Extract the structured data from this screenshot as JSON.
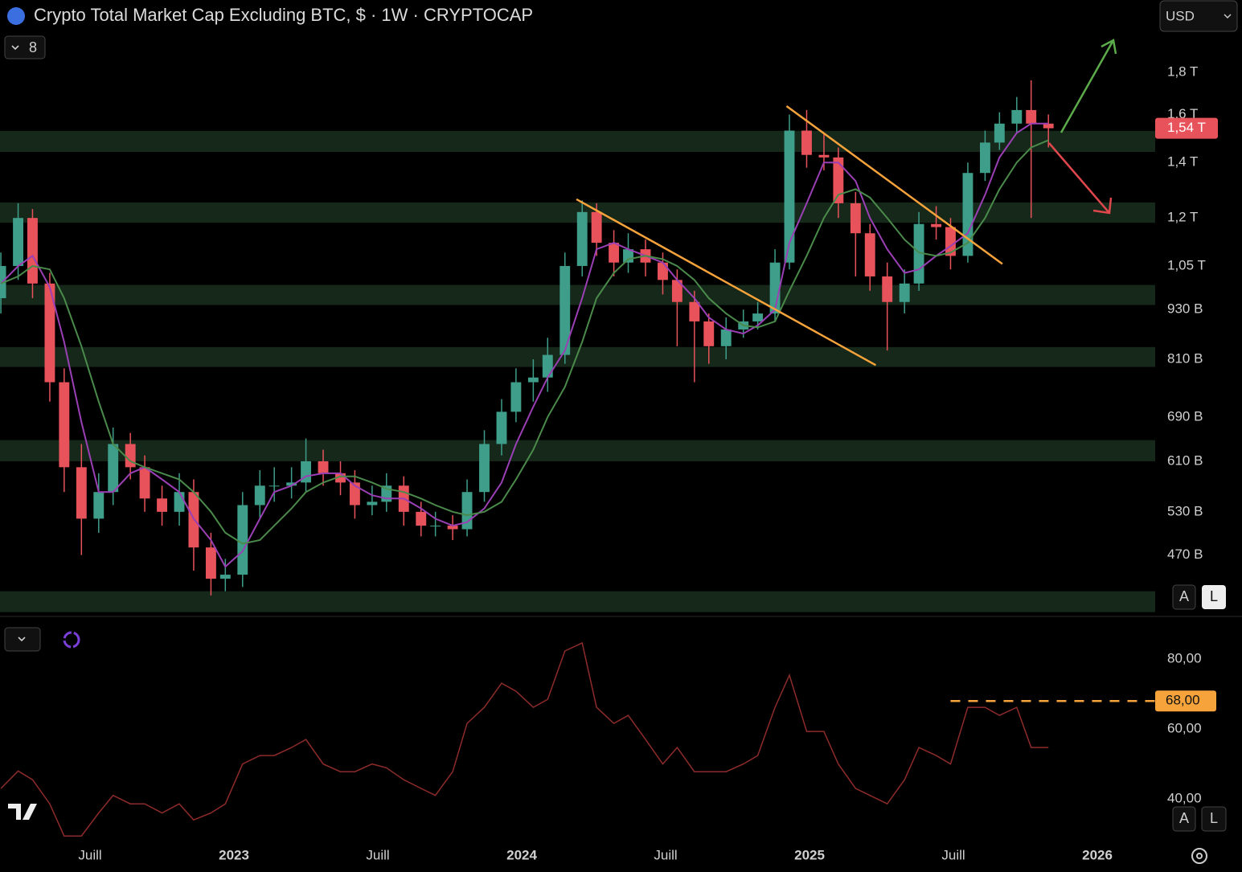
{
  "header": {
    "title": "Crypto Total Market Cap Excluding BTC, $ · 1W · CRYPTOCAP",
    "currency": "USD",
    "indicator_count": "8"
  },
  "buttons": {
    "auto": "A",
    "log": "L"
  },
  "chart_data": [
    {
      "type": "candlestick",
      "log_scale": true,
      "xlim": [
        2022.187,
        2026.201
      ],
      "ylim": [
        398,
        2200
      ],
      "yticks": [
        {
          "value": 1800,
          "label": "1,8 T"
        },
        {
          "value": 1600,
          "label": "1,6 T"
        },
        {
          "value": 1400,
          "label": "1,4 T"
        },
        {
          "value": 1200,
          "label": "1,2 T"
        },
        {
          "value": 1050,
          "label": "1,05 T"
        },
        {
          "value": 930,
          "label": "930 B"
        },
        {
          "value": 810,
          "label": "810 B"
        },
        {
          "value": 690,
          "label": "690 B"
        },
        {
          "value": 610,
          "label": "610 B"
        },
        {
          "value": 530,
          "label": "530 B"
        },
        {
          "value": 470,
          "label": "470 B"
        }
      ],
      "up_color": "#3e9e8a",
      "down_color": "#e8525a",
      "x": [
        2022.19,
        2022.25,
        2022.3,
        2022.36,
        2022.41,
        2022.47,
        2022.53,
        2022.58,
        2022.64,
        2022.69,
        2022.75,
        2022.81,
        2022.86,
        2022.92,
        2022.97,
        2023.03,
        2023.09,
        2023.14,
        2023.2,
        2023.25,
        2023.31,
        2023.37,
        2023.42,
        2023.48,
        2023.53,
        2023.59,
        2023.65,
        2023.7,
        2023.76,
        2023.81,
        2023.87,
        2023.93,
        2023.98,
        2024.04,
        2024.09,
        2024.15,
        2024.21,
        2024.26,
        2024.32,
        2024.37,
        2024.43,
        2024.49,
        2024.54,
        2024.6,
        2024.65,
        2024.71,
        2024.77,
        2024.82,
        2024.88,
        2024.93,
        2024.99,
        2025.05,
        2025.1,
        2025.16,
        2025.21,
        2025.27,
        2025.33,
        2025.38,
        2025.44,
        2025.49,
        2025.55,
        2025.61,
        2025.66,
        2025.72,
        2025.77,
        2025.83
      ],
      "open": [
        960,
        1050,
        1200,
        1000,
        760,
        600,
        520,
        560,
        640,
        600,
        550,
        530,
        560,
        480,
        440,
        445,
        540,
        570,
        570,
        575,
        610,
        590,
        575,
        540,
        545,
        570,
        530,
        510,
        510,
        505,
        560,
        640,
        700,
        760,
        770,
        820,
        1050,
        1220,
        1120,
        1060,
        1100,
        1060,
        1010,
        950,
        900,
        840,
        880,
        900,
        920,
        1060,
        1530,
        1430,
        1420,
        1250,
        1150,
        1020,
        950,
        1000,
        1180,
        1170,
        1080,
        1360,
        1480,
        1560,
        1620,
        1560
      ],
      "high": [
        1090,
        1250,
        1230,
        1030,
        790,
        640,
        590,
        670,
        660,
        620,
        570,
        590,
        580,
        500,
        465,
        560,
        595,
        600,
        600,
        650,
        630,
        610,
        595,
        570,
        590,
        585,
        545,
        530,
        525,
        580,
        665,
        725,
        790,
        810,
        860,
        1090,
        1260,
        1250,
        1160,
        1150,
        1130,
        1090,
        1040,
        980,
        920,
        910,
        930,
        950,
        1100,
        1600,
        1620,
        1520,
        1460,
        1290,
        1180,
        1060,
        1040,
        1220,
        1240,
        1200,
        1400,
        1530,
        1610,
        1680,
        1760,
        1600
      ],
      "low": [
        920,
        1010,
        960,
        720,
        560,
        470,
        500,
        540,
        580,
        530,
        510,
        510,
        450,
        420,
        425,
        430,
        520,
        545,
        550,
        560,
        570,
        555,
        520,
        525,
        530,
        510,
        495,
        495,
        490,
        495,
        545,
        620,
        680,
        720,
        740,
        800,
        1020,
        1080,
        1020,
        1030,
        1020,
        970,
        840,
        760,
        800,
        810,
        860,
        880,
        900,
        1040,
        1380,
        1370,
        1200,
        1020,
        980,
        830,
        920,
        980,
        1130,
        1040,
        1060,
        1330,
        1450,
        1520,
        1200,
        1460
      ],
      "close": [
        1050,
        1200,
        1000,
        760,
        600,
        520,
        560,
        640,
        600,
        550,
        530,
        560,
        480,
        440,
        445,
        540,
        570,
        570,
        575,
        610,
        590,
        575,
        540,
        545,
        570,
        530,
        510,
        510,
        505,
        560,
        640,
        700,
        760,
        770,
        820,
        1050,
        1220,
        1120,
        1060,
        1100,
        1060,
        1010,
        950,
        900,
        840,
        880,
        900,
        920,
        1060,
        1530,
        1430,
        1420,
        1250,
        1150,
        1020,
        950,
        1000,
        1180,
        1170,
        1080,
        1360,
        1480,
        1560,
        1620,
        1560,
        1540
      ],
      "series": [
        {
          "color": "#9b3fb5",
          "values": [
            1000,
            1050,
            1080,
            990,
            850,
            680,
            560,
            560,
            590,
            600,
            580,
            560,
            520,
            490,
            455,
            475,
            520,
            560,
            570,
            585,
            590,
            590,
            570,
            555,
            550,
            550,
            535,
            520,
            510,
            515,
            535,
            575,
            640,
            710,
            770,
            830,
            960,
            1100,
            1120,
            1100,
            1080,
            1060,
            1010,
            960,
            910,
            880,
            870,
            890,
            930,
            1120,
            1250,
            1400,
            1400,
            1330,
            1200,
            1100,
            1030,
            1040,
            1080,
            1110,
            1150,
            1280,
            1420,
            1520,
            1560,
            1560
          ]
        },
        {
          "color": "#4a8a4a",
          "values": [
            1000,
            1020,
            1050,
            1040,
            960,
            840,
            720,
            640,
            610,
            600,
            590,
            580,
            560,
            530,
            500,
            485,
            490,
            510,
            535,
            560,
            575,
            585,
            585,
            575,
            565,
            560,
            550,
            540,
            530,
            525,
            530,
            545,
            580,
            630,
            690,
            750,
            850,
            960,
            1030,
            1070,
            1080,
            1070,
            1050,
            1010,
            960,
            920,
            890,
            885,
            900,
            980,
            1080,
            1200,
            1280,
            1300,
            1270,
            1200,
            1130,
            1090,
            1080,
            1090,
            1120,
            1200,
            1300,
            1400,
            1460,
            1490
          ]
        }
      ],
      "zones": [
        [
          1442,
          1529
        ],
        [
          1184,
          1253
        ],
        [
          942,
          996
        ],
        [
          793,
          838
        ],
        [
          610,
          647
        ],
        [
          401,
          425
        ]
      ],
      "zone_color": "#15281a",
      "trendlines": [
        {
          "x": [
            2024.19,
            2025.23
          ],
          "y": [
            1264,
            797
          ],
          "color": "#f5a33a"
        },
        {
          "x": [
            2024.92,
            2025.67
          ],
          "y": [
            1638,
            1056
          ],
          "color": "#f5a33a"
        }
      ],
      "last_price": {
        "value": 1540,
        "label": "1,54 T",
        "color": "#e8525a"
      }
    },
    {
      "type": "line",
      "xlim": [
        2022.187,
        2026.201
      ],
      "ylim": [
        28.3,
        91.5
      ],
      "yticks": [
        {
          "value": 80,
          "label": "80,00"
        },
        {
          "value": 60,
          "label": "60,00"
        },
        {
          "value": 40,
          "label": "40,00"
        }
      ],
      "xticks": [
        {
          "value": 2022.5,
          "label": "Juill"
        },
        2023,
        {
          "value": 2023.5,
          "label": "Juill"
        },
        2024,
        {
          "value": 2024.5,
          "label": "Juill"
        },
        2025,
        {
          "value": 2025.5,
          "label": "Juill"
        },
        2026
      ],
      "x": [
        2022.19,
        2022.25,
        2022.3,
        2022.36,
        2022.41,
        2022.47,
        2022.53,
        2022.58,
        2022.64,
        2022.69,
        2022.75,
        2022.81,
        2022.86,
        2022.92,
        2022.97,
        2023.03,
        2023.09,
        2023.14,
        2023.2,
        2023.25,
        2023.31,
        2023.37,
        2023.42,
        2023.48,
        2023.53,
        2023.59,
        2023.65,
        2023.7,
        2023.76,
        2023.81,
        2023.87,
        2023.93,
        2023.98,
        2024.04,
        2024.09,
        2024.15,
        2024.21,
        2024.26,
        2024.32,
        2024.37,
        2024.43,
        2024.49,
        2024.54,
        2024.6,
        2024.65,
        2024.71,
        2024.77,
        2024.82,
        2024.88,
        2024.93,
        2024.99,
        2025.05,
        2025.1,
        2025.16,
        2025.21,
        2025.27,
        2025.33,
        2025.38,
        2025.44,
        2025.49,
        2025.55,
        2025.61,
        2025.66,
        2025.72,
        2025.77,
        2025.83
      ],
      "series": [
        {
          "color": "#8e2b2b",
          "values": [
            43,
            48,
            45.5,
            38.6,
            29.4,
            29.4,
            36,
            41,
            38.6,
            38.6,
            36,
            38.6,
            34,
            36,
            38.6,
            50,
            52.4,
            52.4,
            54.7,
            57,
            50,
            47.8,
            47.8,
            50,
            48.9,
            45.5,
            43,
            41,
            47.8,
            61.6,
            66.2,
            73.1,
            70.8,
            66.2,
            68.5,
            82.3,
            84.6,
            66.2,
            61.6,
            63.9,
            57,
            50,
            54.7,
            47.8,
            47.8,
            47.8,
            50,
            52.4,
            66.2,
            75.4,
            59.3,
            59.3,
            50,
            43,
            41,
            38.6,
            45.5,
            54.7,
            52.4,
            50,
            66.2,
            66.2,
            63.9,
            66.2,
            54.7,
            54.7
          ]
        }
      ],
      "level": {
        "value": 68,
        "label": "68,00",
        "x_start": 2025.49,
        "color": "#f5a33a"
      }
    }
  ]
}
